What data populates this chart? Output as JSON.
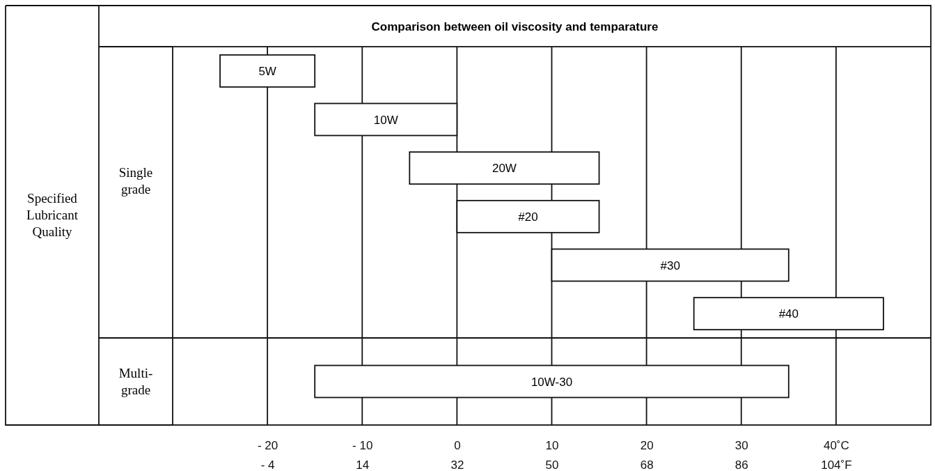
{
  "chart_data": {
    "type": "bar",
    "orientation": "horizontal",
    "title": "Comparison between oil viscosity and temparature",
    "categories": [
      "5W",
      "10W",
      "20W",
      "#20",
      "#30",
      "#40",
      "10W-30"
    ],
    "base": [
      -25,
      -15,
      -5,
      0,
      10,
      25,
      -15
    ],
    "values": [
      10,
      15,
      20,
      15,
      25,
      20,
      50
    ],
    "color": "#ffffff",
    "xlim": [
      -30,
      50
    ],
    "xticks": [
      {
        "value": -20,
        "label": "- 20"
      },
      {
        "value": -10,
        "label": "- 10"
      },
      0,
      10,
      20,
      30,
      {
        "value": 40,
        "label": "40˚C"
      }
    ],
    "x2lim": [
      -22,
      122
    ],
    "x2ticks": [
      {
        "value": -4,
        "label": "- 4"
      },
      14,
      32,
      50,
      68,
      86,
      {
        "value": 104,
        "label": "104˚F"
      }
    ],
    "annotations": [
      "Specified Lubricant Quality",
      "Single grade",
      "Multi-grade"
    ],
    "grid": "x"
  }
}
